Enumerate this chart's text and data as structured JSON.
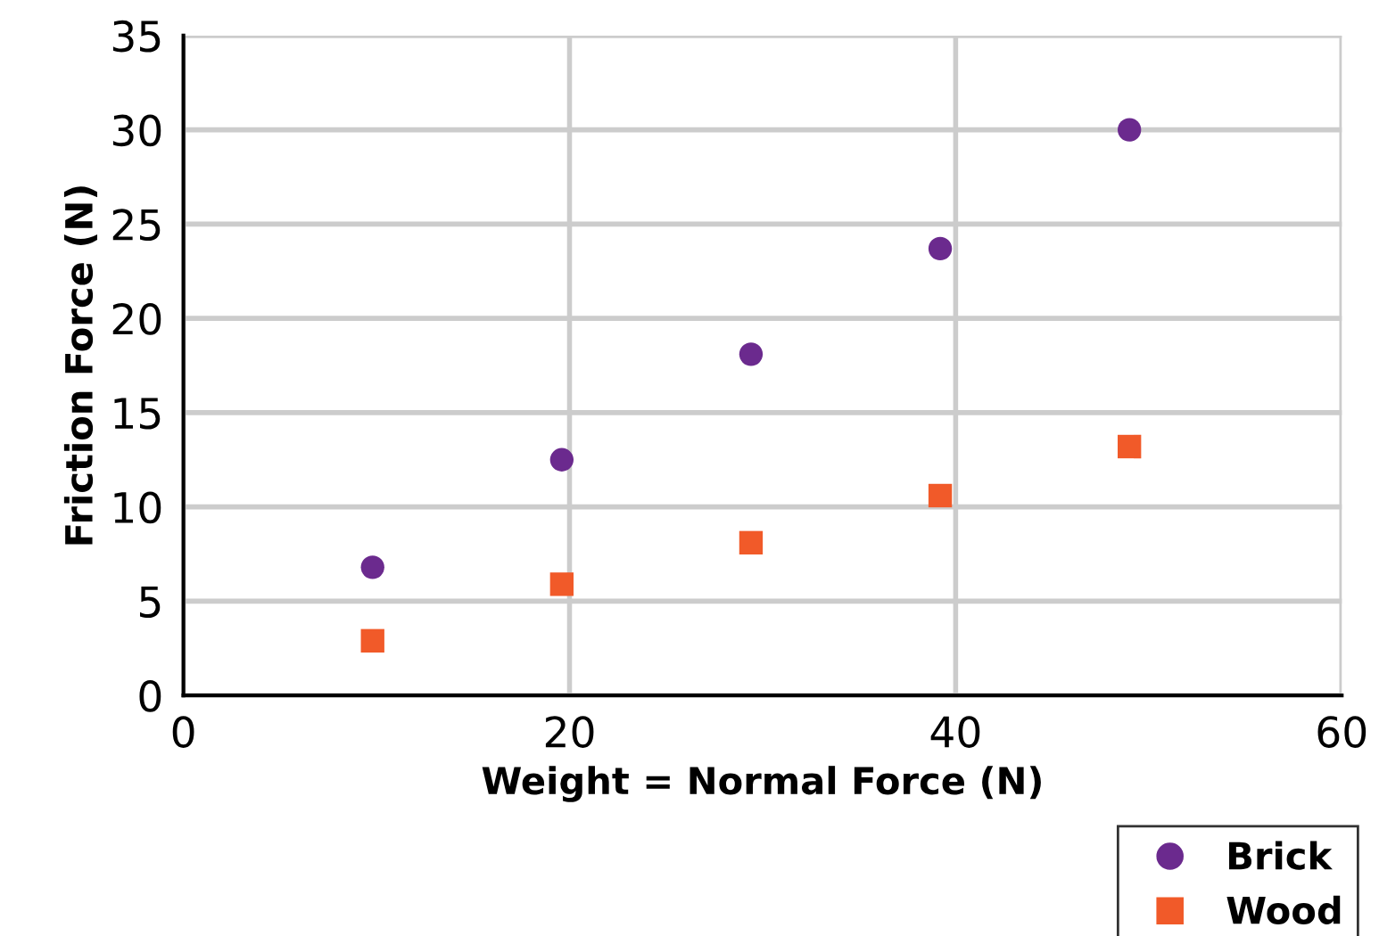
{
  "chart_data": {
    "type": "scatter",
    "xlabel": "Weight = Normal Force (N)",
    "ylabel": "Friction Force (N)",
    "series": [
      {
        "name": "Brick",
        "color": "#6b2a8e",
        "marker": "circle",
        "x": [
          9.8,
          19.6,
          29.4,
          39.2,
          49
        ],
        "values": [
          6.8,
          12.5,
          18.1,
          23.7,
          30.0
        ]
      },
      {
        "name": "Wood",
        "color": "#f15a29",
        "marker": "square",
        "x": [
          9.8,
          19.6,
          29.4,
          39.2,
          49
        ],
        "values": [
          2.9,
          5.9,
          8.1,
          10.6,
          13.2
        ]
      }
    ],
    "xlim": [
      0,
      60
    ],
    "xticks": [
      0,
      20,
      40,
      60
    ],
    "ylim": [
      0,
      35
    ],
    "yticks": [
      0,
      5,
      10,
      15,
      20,
      25,
      30,
      35
    ],
    "grid": true,
    "legend": "bottom right"
  }
}
